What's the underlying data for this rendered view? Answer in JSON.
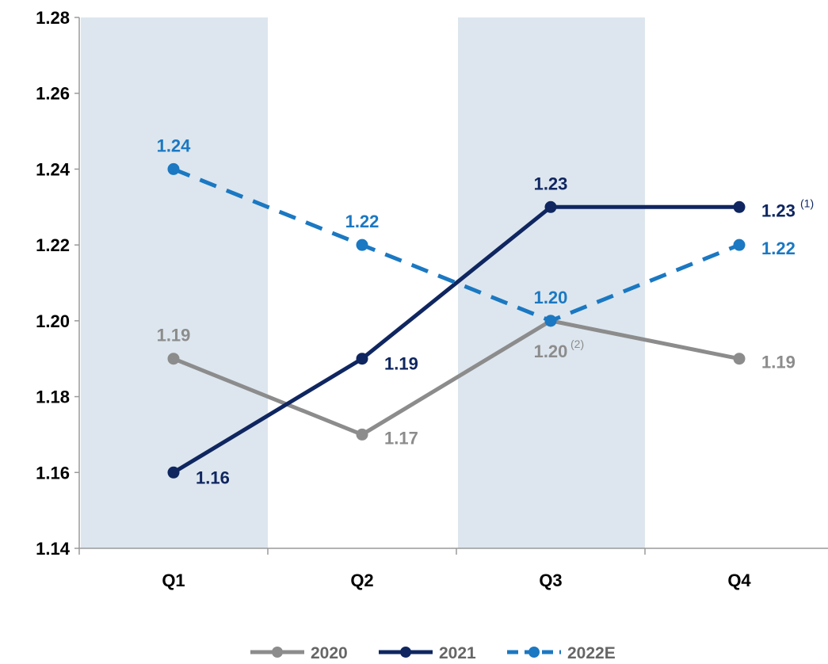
{
  "chart_data": {
    "type": "line",
    "categories": [
      "Q1",
      "Q2",
      "Q3",
      "Q4"
    ],
    "ylim": [
      1.14,
      1.28
    ],
    "yticks": [
      "1.14",
      "1.16",
      "1.18",
      "1.20",
      "1.22",
      "1.24",
      "1.26",
      "1.28"
    ],
    "grid": false,
    "legend_position": "bottom-center",
    "shaded_bands": [
      "Q1",
      "Q3"
    ],
    "band_color": "#dde6ee",
    "series": [
      {
        "name": "2020",
        "color": "#8c8c8c",
        "dashed": false,
        "values": [
          1.19,
          1.17,
          1.2,
          1.19
        ],
        "labels": [
          "1.19",
          "1.17",
          "1.20",
          "1.19"
        ],
        "footnotes": [
          "",
          "",
          "(2)",
          ""
        ]
      },
      {
        "name": "2021",
        "color": "#0f2660",
        "dashed": false,
        "values": [
          1.16,
          1.19,
          1.23,
          1.23
        ],
        "labels": [
          "1.16",
          "1.19",
          "1.23",
          "1.23"
        ],
        "footnotes": [
          "",
          "",
          "",
          "(1)"
        ]
      },
      {
        "name": "2022E",
        "color": "#1b78c2",
        "dashed": true,
        "values": [
          1.24,
          1.22,
          1.2,
          1.22
        ],
        "labels": [
          "1.24",
          "1.22",
          "1.20",
          "1.22"
        ],
        "footnotes": [
          "",
          "",
          "",
          ""
        ]
      }
    ]
  }
}
